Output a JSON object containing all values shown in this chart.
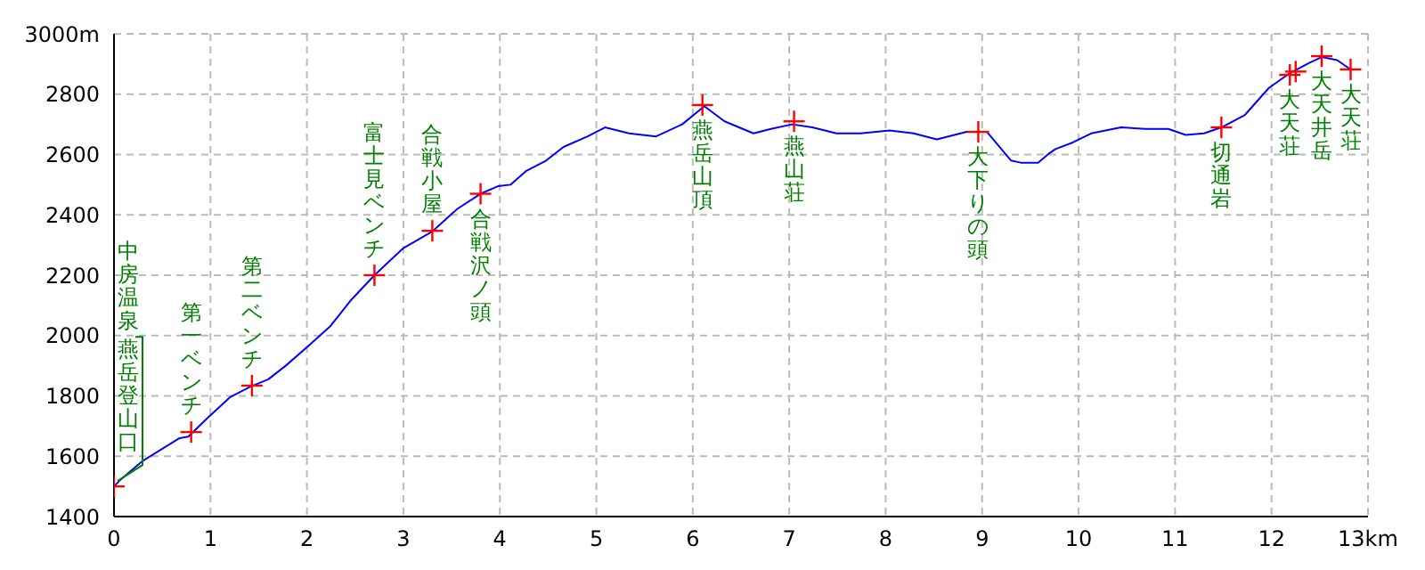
{
  "chart_data": {
    "type": "line",
    "xlim": [
      0,
      13
    ],
    "ylim": [
      1400,
      3000
    ],
    "xticks": [
      0,
      1,
      2,
      3,
      4,
      5,
      6,
      7,
      8,
      9,
      10,
      11,
      12,
      {
        "value": 13,
        "label": "13km"
      }
    ],
    "yticks": [
      1400,
      1600,
      1800,
      2000,
      2200,
      2400,
      2600,
      2800,
      {
        "value": 3000,
        "label": "3000m"
      }
    ],
    "grid": true,
    "line_style": "solid",
    "series": [
      {
        "type": "line",
        "color": "#0000ff",
        "marker": "none",
        "x": [
          0,
          0.06,
          0.3,
          0.68,
          0.77,
          0.98,
          1.2,
          1.41,
          1.6,
          1.78,
          2.03,
          2.24,
          2.45,
          2.7,
          3.0,
          3.3,
          3.56,
          3.8,
          3.98,
          4.11,
          4.27,
          4.48,
          4.66,
          4.91,
          5.09,
          5.34,
          5.62,
          5.89,
          6.12,
          6.33,
          6.63,
          6.81,
          7.03,
          7.24,
          7.49,
          7.74,
          8.04,
          8.29,
          8.53,
          8.84,
          9.05,
          9.3,
          9.4,
          9.58,
          9.7,
          9.76,
          9.94,
          10.13,
          10.44,
          10.69,
          10.93,
          11.11,
          11.3,
          11.48,
          11.72,
          11.97,
          12.19,
          12.4,
          12.52,
          12.68,
          12.82
        ],
        "values": [
          1500,
          1520,
          1585,
          1660,
          1665,
          1730,
          1795,
          1830,
          1855,
          1900,
          1970,
          2030,
          2115,
          2200,
          2290,
          2345,
          2420,
          2470,
          2495,
          2500,
          2545,
          2580,
          2625,
          2660,
          2690,
          2670,
          2660,
          2700,
          2760,
          2710,
          2670,
          2685,
          2700,
          2690,
          2670,
          2670,
          2680,
          2670,
          2650,
          2675,
          2675,
          2580,
          2573,
          2573,
          2605,
          2618,
          2640,
          2670,
          2690,
          2685,
          2685,
          2665,
          2670,
          2690,
          2730,
          2820,
          2870,
          2905,
          2923,
          2913,
          2882
        ]
      },
      {
        "type": "scatter",
        "color": "#ff0000",
        "marker": "cross",
        "x": [
          0,
          0.8,
          1.43,
          2.7,
          3.3,
          3.8,
          6.1,
          7.05,
          8.96,
          11.48,
          12.19,
          12.25,
          12.52,
          12.82
        ],
        "values": [
          1500,
          1680,
          1834,
          2200,
          2347,
          2470,
          2764,
          2710,
          2675,
          2690,
          2864,
          2875,
          2926,
          2882
        ]
      }
    ],
    "annotations": [
      {
        "text": "中房温泉",
        "x": 0,
        "y": 1500
      },
      {
        "text": "燕岳登山口",
        "x": 0,
        "y": 1500
      },
      {
        "text": "第一ベンチ",
        "x": 0.8,
        "y": 1680
      },
      {
        "text": "第二ベンチ",
        "x": 1.43,
        "y": 1834
      },
      {
        "text": "富士見ベンチ",
        "x": 2.7,
        "y": 2200
      },
      {
        "text": "合戦小屋",
        "x": 3.3,
        "y": 2347
      },
      {
        "text": "合戦沢ノ頭",
        "x": 3.8,
        "y": 2470
      },
      {
        "text": "燕岳山頂",
        "x": 6.1,
        "y": 2764
      },
      {
        "text": "燕山荘",
        "x": 7.05,
        "y": 2710
      },
      {
        "text": "大下りの頭",
        "x": 8.96,
        "y": 2675
      },
      {
        "text": "切通岩",
        "x": 11.48,
        "y": 2690
      },
      {
        "text": "大天荘",
        "x": 12.19,
        "y": 2864
      },
      {
        "text": "大天井岳",
        "x": 12.52,
        "y": 2926
      },
      {
        "text": "大天荘",
        "x": 12.82,
        "y": 2882
      }
    ]
  }
}
